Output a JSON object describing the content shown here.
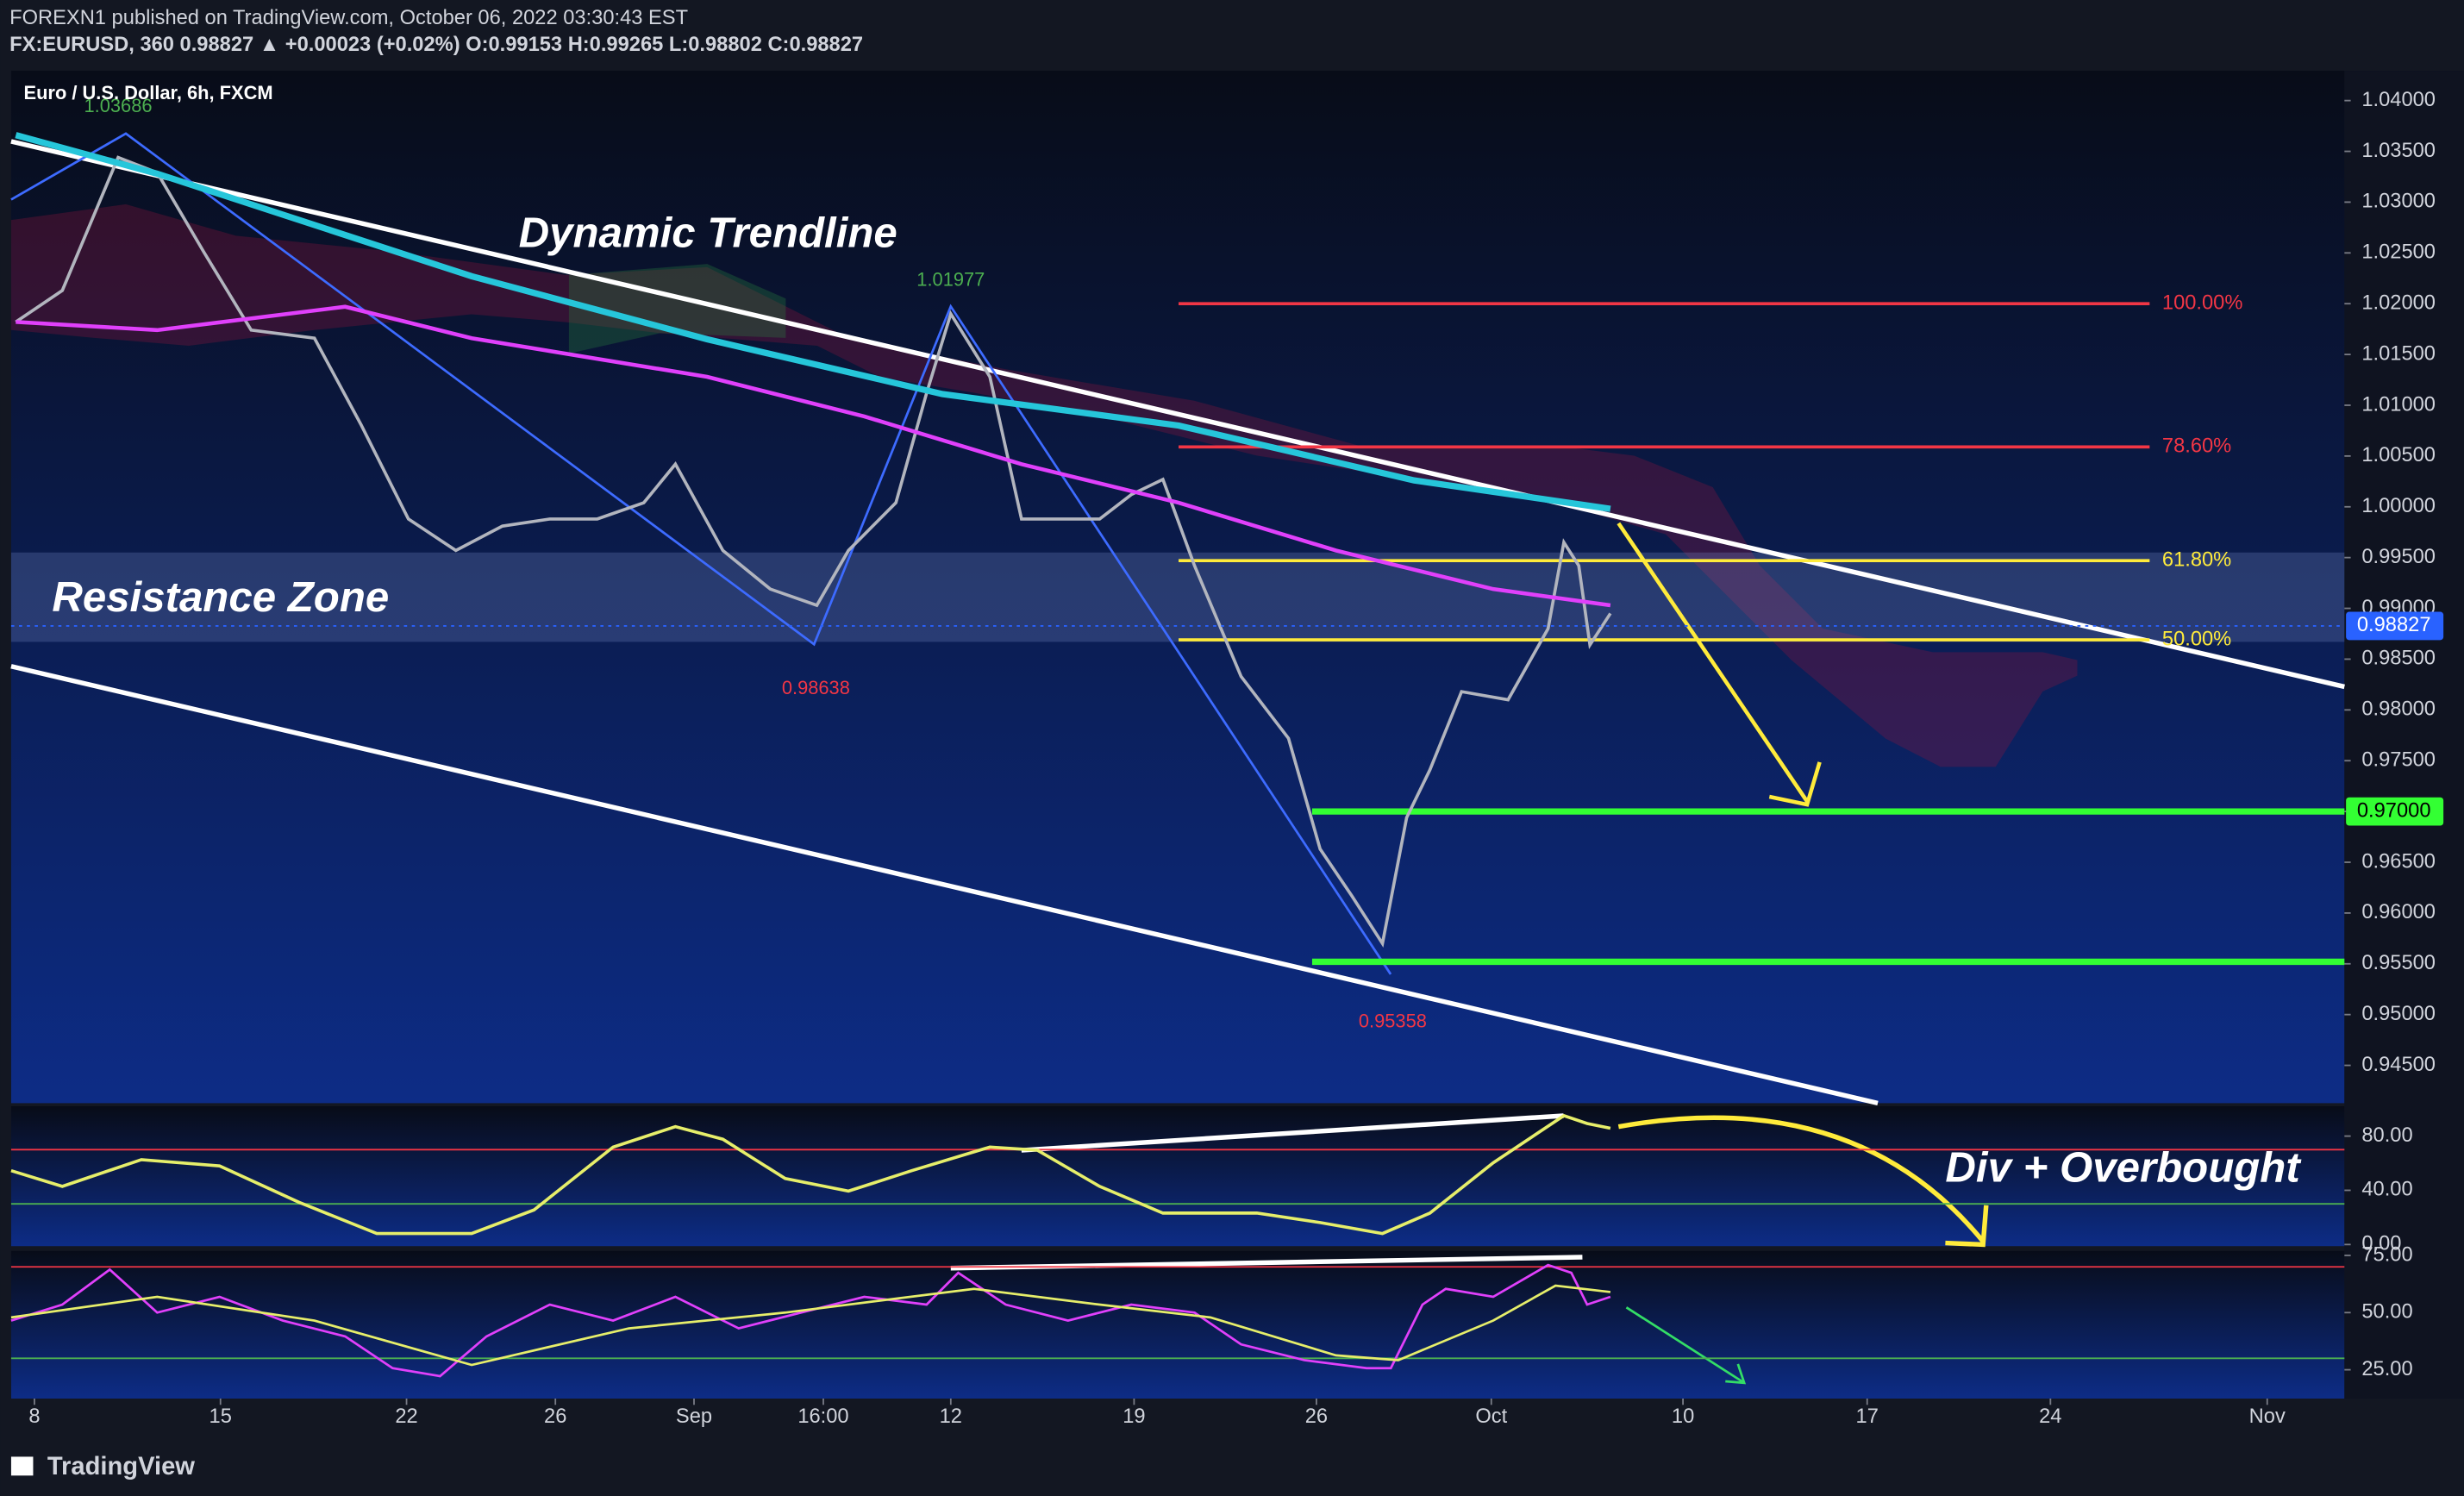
{
  "header": {
    "title": "FOREXN1 published on TradingView.com, October 06, 2022 03:30:43 EST",
    "quote": "FX:EURUSD, 360  0.98827 ▲ +0.00023 (+0.02%)  O:0.99153  H:0.99265  L:0.98802  C:0.98827",
    "brand": "TradingView"
  },
  "chart_data": [
    {
      "type": "line",
      "title": "Euro / U.S. Dollar, 6h, FXCM",
      "notes": [
        "Dynamic Trendline",
        "Resistance Zone"
      ],
      "xlim": [
        -2.5,
        248.3
      ],
      "ylim": [
        0.94128,
        1.04294
      ],
      "xticks": [
        {
          "value": 0,
          "label": "8"
        },
        {
          "value": 20,
          "label": "15"
        },
        {
          "value": 40,
          "label": "22"
        },
        {
          "value": 56,
          "label": "26"
        },
        {
          "value": 70.9,
          "label": "Sep"
        },
        {
          "value": 84.8,
          "label": "16:00"
        },
        {
          "value": 98.5,
          "label": "12"
        },
        {
          "value": 118.2,
          "label": "19"
        },
        {
          "value": 137.8,
          "label": "26"
        },
        {
          "value": 156.6,
          "label": "Oct"
        },
        {
          "value": 177.2,
          "label": "10"
        },
        {
          "value": 197,
          "label": "17"
        },
        {
          "value": 216.7,
          "label": "24"
        },
        {
          "value": 240,
          "label": "Nov"
        }
      ],
      "yticks": [
        {
          "value": 0.945,
          "label": "0.94500"
        },
        {
          "value": 0.95,
          "label": "0.95000"
        },
        {
          "value": 0.955,
          "label": "0.95500"
        },
        {
          "value": 0.96,
          "label": "0.96000"
        },
        {
          "value": 0.965,
          "label": "0.96500"
        },
        {
          "value": 0.97,
          "label": "0.97000"
        },
        {
          "value": 0.975,
          "label": "0.97500"
        },
        {
          "value": 0.98,
          "label": "0.98000"
        },
        {
          "value": 0.985,
          "label": "0.98500"
        },
        {
          "value": 0.99,
          "label": "0.99000"
        },
        {
          "value": 0.995,
          "label": "0.99500"
        },
        {
          "value": 1.0,
          "label": "1.00000"
        },
        {
          "value": 1.005,
          "label": "1.00500"
        },
        {
          "value": 1.01,
          "label": "1.01000"
        },
        {
          "value": 1.015,
          "label": "1.01500"
        },
        {
          "value": 1.02,
          "label": "1.02000"
        },
        {
          "value": 1.025,
          "label": "1.02500"
        },
        {
          "value": 1.03,
          "label": "1.03000"
        },
        {
          "value": 1.035,
          "label": "1.03500"
        },
        {
          "value": 1.04,
          "label": "1.04000"
        }
      ],
      "series": [
        {
          "color": "#b2b5be",
          "width": 2,
          "x": [
            -2,
            3,
            9,
            13.2,
            18.2,
            23.3,
            30.1,
            35.1,
            40.2,
            45.3,
            50.3,
            55.4,
            60.5,
            65.5,
            68.9,
            74,
            79.1,
            84.1,
            87.5,
            92.6,
            95.9,
            98.5,
            102.7,
            106.1,
            111.1,
            114.5,
            117.9,
            121.3,
            124.7,
            129.7,
            134.8,
            138.2,
            141.6,
            144.9,
            147.5,
            150,
            153.4,
            158.4,
            162.7,
            164.4,
            166,
            167.2,
            169.4
          ],
          "values": [
            1.0182,
            1.0213,
            1.0344,
            1.0329,
            1.0251,
            1.0174,
            1.0166,
            1.0081,
            0.9988,
            0.9957,
            0.9981,
            0.9988,
            0.9988,
            1.0004,
            1.0042,
            0.9957,
            0.9919,
            0.9903,
            0.9957,
            1.0004,
            1.0112,
            1.019,
            1.0128,
            0.9988,
            0.9988,
            0.9988,
            1.0012,
            1.0027,
            0.9942,
            0.9833,
            0.9772,
            0.9663,
            0.9617,
            0.957,
            0.9694,
            0.9741,
            0.9818,
            0.981,
            0.988,
            0.9965,
            0.9942,
            0.9864,
            0.9895
          ]
        },
        {
          "color": "#26c6da",
          "width": 4,
          "x": [
            -2,
            13.2,
            47,
            72.3,
            97.6,
            123,
            148.3,
            169.4
          ],
          "values": [
            1.0366,
            1.0328,
            1.0227,
            1.0165,
            1.0111,
            1.008,
            1.0026,
            0.9998
          ]
        },
        {
          "color": "#e040fb",
          "width": 2.5,
          "x": [
            -2,
            13.2,
            33.4,
            47,
            72.3,
            89.2,
            106.1,
            123,
            139.9,
            156.8,
            169.4
          ],
          "values": [
            1.0182,
            1.0174,
            1.0197,
            1.0166,
            1.0128,
            1.0089,
            1.0042,
            1.0004,
            0.9957,
            0.9919,
            0.9903
          ]
        }
      ],
      "zone": [
        0.9867,
        0.9955
      ],
      "fib_levels": [
        {
          "value": 1.02,
          "label": "100.00%",
          "color": "#f23645"
        },
        {
          "value": 1.0059,
          "label": "78.60%",
          "color": "#f23645"
        },
        {
          "value": 0.9947,
          "label": "61.80%",
          "color": "#ffeb3b"
        },
        {
          "value": 0.9869,
          "label": "50.00%",
          "color": "#ffeb3b"
        }
      ],
      "support_levels": [
        0.97,
        0.9552
      ],
      "support_color": "#33ff33",
      "support_tag": {
        "value": 0.97,
        "label": "0.97000"
      },
      "last_price": {
        "value": 0.98827,
        "label": "0.98827"
      },
      "pivots": [
        {
          "label": "1.03686",
          "x": 9,
          "value": 1.03686,
          "side": "high",
          "color": "#4caf50"
        },
        {
          "label": "1.01977",
          "x": 98.5,
          "value": 1.01977,
          "side": "high",
          "color": "#4caf50"
        },
        {
          "label": "0.98638",
          "x": 84,
          "value": 0.98638,
          "side": "low",
          "color": "#f23645"
        },
        {
          "label": "0.95358",
          "x": 146,
          "value": 0.95358,
          "side": "low",
          "color": "#f23645"
        }
      ]
    },
    {
      "type": "line",
      "notes": [
        "Div + Overbought"
      ],
      "xlim": [
        -2.5,
        248.3
      ],
      "ylim": [
        -1.2,
        102
      ],
      "yticks": [
        {
          "value": 0,
          "label": "0.00"
        },
        {
          "value": 40,
          "label": "40.00"
        },
        {
          "value": 80,
          "label": "80.00"
        }
      ],
      "levels": [
        70,
        30
      ],
      "series": [
        {
          "color": "#e6ee6a",
          "width": 2,
          "x": [
            -2.5,
            3,
            11.5,
            19.9,
            28.4,
            36.8,
            47,
            53.7,
            62.2,
            68.9,
            74,
            80.7,
            87.5,
            94.3,
            102.7,
            107.8,
            114.5,
            121.3,
            131.4,
            138.2,
            144.9,
            150,
            156.8,
            164.4,
            166.9,
            169.4
          ],
          "values": [
            54.5,
            42.9,
            62.6,
            58,
            31.3,
            8.1,
            8.1,
            25.5,
            71.9,
            87,
            77.7,
            48.7,
            39.4,
            54.5,
            71.9,
            69.6,
            42.9,
            23.2,
            23.2,
            16.2,
            8.1,
            23.2,
            60.3,
            95.1,
            89.3,
            85.8
          ]
        }
      ]
    },
    {
      "type": "line",
      "xlim": [
        -2.5,
        248.3
      ],
      "ylim": [
        12.4,
        77
      ],
      "yticks": [
        {
          "value": 25,
          "label": "25.00"
        },
        {
          "value": 50,
          "label": "50.00"
        },
        {
          "value": 75,
          "label": "75.00"
        }
      ],
      "levels": [
        70,
        30
      ],
      "series": [
        {
          "color": "#e040fb",
          "width": 1.5,
          "x": [
            -2.5,
            3,
            8.1,
            13.2,
            19.9,
            26.7,
            33.4,
            38.5,
            43.6,
            48.6,
            55.4,
            62.2,
            68.9,
            75.7,
            82.4,
            89.2,
            95.9,
            99.3,
            104.4,
            111.1,
            117.9,
            124.7,
            129.7,
            136.5,
            143.2,
            145.8,
            149.2,
            151.7,
            156.8,
            162.7,
            165.2,
            166.9,
            169.4
          ],
          "values": [
            46.5,
            53.5,
            68.8,
            50,
            56.9,
            46.5,
            39.6,
            25.7,
            22.2,
            39.6,
            53.5,
            46.5,
            56.9,
            43.1,
            50,
            56.9,
            53.5,
            67.4,
            53.5,
            46.5,
            53.5,
            50,
            36.1,
            29.2,
            25.7,
            25.7,
            53.5,
            60.4,
            56.9,
            70.8,
            67.4,
            53.5,
            56.9
          ]
        },
        {
          "color": "#e6ee6a",
          "width": 1.5,
          "x": [
            -2.5,
            13.2,
            30.1,
            47,
            63.9,
            80.7,
            101,
            114.5,
            126.4,
            139.9,
            146.6,
            156.8,
            163.5,
            169.4
          ],
          "values": [
            47.9,
            56.9,
            46.5,
            27.1,
            43.1,
            50,
            60.4,
            53.5,
            47.9,
            31.3,
            29.2,
            46.5,
            61.8,
            59
          ]
        }
      ]
    }
  ]
}
